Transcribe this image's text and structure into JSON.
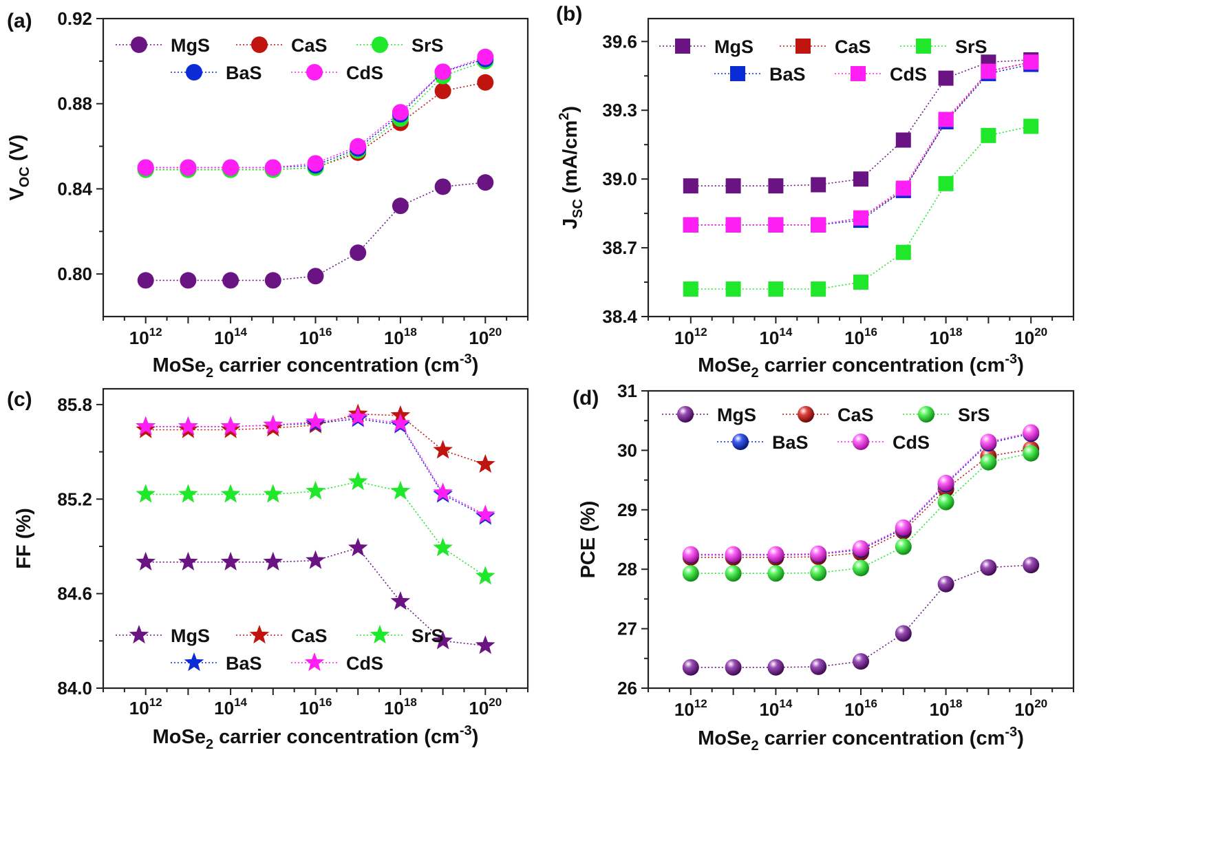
{
  "figure": {
    "xlabel_main": "MoSe",
    "xlabel_sub": "2",
    "xlabel_tail": " carrier concentration (cm",
    "xlabel_sup": "-3",
    "xlabel_end": ")",
    "x_tick_base": "10",
    "series_colors": {
      "MgS": "#6a1483",
      "CaS": "#c0140f",
      "SrS": "#1fe82a",
      "BaS": "#0b2bd6",
      "CdS": "#ff1ff4"
    },
    "legend_rows": [
      [
        "MgS",
        "CaS",
        "SrS"
      ],
      [
        "BaS",
        "CdS"
      ]
    ]
  },
  "chart_data": [
    {
      "panel_label": "(a)",
      "type": "line",
      "marker": "circle",
      "ylabel_main": "V",
      "ylabel_sub": "OC",
      "ylabel_tail": " (V)",
      "ylim": [
        0.78,
        0.92
      ],
      "yticks": [
        "0.80",
        "0.84",
        "0.88",
        "0.92"
      ],
      "yticks_values": [
        0.8,
        0.84,
        0.88,
        0.92
      ],
      "x_exponents": [
        12,
        13,
        14,
        15,
        16,
        17,
        18,
        19,
        20
      ],
      "x_labeled_exponents": [
        "12",
        "14",
        "16",
        "18",
        "20"
      ],
      "legend_position": "top",
      "series": [
        {
          "name": "MgS",
          "values": [
            0.797,
            0.797,
            0.797,
            0.797,
            0.799,
            0.81,
            0.832,
            0.841,
            0.843
          ]
        },
        {
          "name": "CaS",
          "values": [
            0.849,
            0.849,
            0.849,
            0.849,
            0.85,
            0.857,
            0.871,
            0.886,
            0.89
          ]
        },
        {
          "name": "SrS",
          "values": [
            0.849,
            0.849,
            0.849,
            0.849,
            0.85,
            0.858,
            0.873,
            0.893,
            0.9
          ]
        },
        {
          "name": "BaS",
          "values": [
            0.85,
            0.85,
            0.85,
            0.85,
            0.851,
            0.859,
            0.875,
            0.895,
            0.901
          ]
        },
        {
          "name": "CdS",
          "values": [
            0.85,
            0.85,
            0.85,
            0.85,
            0.852,
            0.86,
            0.876,
            0.895,
            0.902
          ]
        }
      ]
    },
    {
      "panel_label": "(b)",
      "type": "line",
      "marker": "square",
      "ylabel_main": "J",
      "ylabel_sub": "SC",
      "ylabel_tail": " (mA/cm",
      "ylabel_sup": "2",
      "ylabel_end": ")",
      "ylim": [
        38.4,
        39.7
      ],
      "yticks": [
        "38.4",
        "38.7",
        "39.0",
        "39.3",
        "39.6"
      ],
      "yticks_values": [
        38.4,
        38.7,
        39.0,
        39.3,
        39.6
      ],
      "x_exponents": [
        12,
        13,
        14,
        15,
        16,
        17,
        18,
        19,
        20
      ],
      "x_labeled_exponents": [
        "12",
        "14",
        "16",
        "18",
        "20"
      ],
      "legend_position": "top",
      "series": [
        {
          "name": "MgS",
          "values": [
            38.97,
            38.97,
            38.97,
            38.975,
            39.0,
            39.17,
            39.44,
            39.51,
            39.52
          ]
        },
        {
          "name": "CaS",
          "values": [
            38.8,
            38.8,
            38.8,
            38.8,
            38.83,
            38.95,
            39.25,
            39.47,
            39.51
          ]
        },
        {
          "name": "SrS",
          "values": [
            38.52,
            38.52,
            38.52,
            38.52,
            38.55,
            38.68,
            38.98,
            39.19,
            39.23
          ]
        },
        {
          "name": "BaS",
          "values": [
            38.8,
            38.8,
            38.8,
            38.8,
            38.82,
            38.95,
            39.25,
            39.46,
            39.5
          ]
        },
        {
          "name": "CdS",
          "values": [
            38.8,
            38.8,
            38.8,
            38.8,
            38.83,
            38.96,
            39.26,
            39.47,
            39.51
          ]
        }
      ]
    },
    {
      "panel_label": "(c)",
      "type": "line",
      "marker": "star",
      "ylabel_main": "FF (%)",
      "ylim": [
        84.0,
        85.9
      ],
      "yticks": [
        "84.0",
        "84.6",
        "85.2",
        "85.8"
      ],
      "yticks_values": [
        84.0,
        84.6,
        85.2,
        85.8
      ],
      "x_exponents": [
        12,
        13,
        14,
        15,
        16,
        17,
        18,
        19,
        20
      ],
      "x_labeled_exponents": [
        "12",
        "14",
        "16",
        "18",
        "20"
      ],
      "legend_position": "bottom",
      "series": [
        {
          "name": "MgS",
          "values": [
            84.8,
            84.8,
            84.8,
            84.8,
            84.81,
            84.89,
            84.55,
            84.3,
            84.27
          ]
        },
        {
          "name": "CaS",
          "values": [
            85.64,
            85.64,
            85.64,
            85.65,
            85.67,
            85.74,
            85.73,
            85.51,
            85.42
          ]
        },
        {
          "name": "SrS",
          "values": [
            85.23,
            85.23,
            85.23,
            85.23,
            85.25,
            85.31,
            85.25,
            84.89,
            84.71
          ]
        },
        {
          "name": "BaS",
          "values": [
            85.66,
            85.66,
            85.66,
            85.67,
            85.68,
            85.71,
            85.67,
            85.23,
            85.09
          ]
        },
        {
          "name": "CdS",
          "values": [
            85.66,
            85.66,
            85.66,
            85.67,
            85.69,
            85.72,
            85.68,
            85.24,
            85.1
          ]
        }
      ]
    },
    {
      "panel_label": "(d)",
      "type": "line",
      "marker": "sphere",
      "ylabel_main": "PCE (%)",
      "ylim": [
        26,
        31
      ],
      "yticks": [
        "26",
        "27",
        "28",
        "29",
        "30",
        "31"
      ],
      "yticks_values": [
        26,
        27,
        28,
        29,
        30,
        31
      ],
      "x_exponents": [
        12,
        13,
        14,
        15,
        16,
        17,
        18,
        19,
        20
      ],
      "x_labeled_exponents": [
        "12",
        "14",
        "16",
        "18",
        "20"
      ],
      "legend_position": "top",
      "series": [
        {
          "name": "MgS",
          "values": [
            26.35,
            26.35,
            26.35,
            26.36,
            26.45,
            26.92,
            27.75,
            28.03,
            28.07
          ]
        },
        {
          "name": "CaS",
          "values": [
            28.2,
            28.2,
            28.2,
            28.21,
            28.28,
            28.64,
            29.35,
            29.9,
            30.02
          ]
        },
        {
          "name": "SrS",
          "values": [
            27.93,
            27.93,
            27.93,
            27.94,
            28.02,
            28.38,
            29.13,
            29.8,
            29.95
          ]
        },
        {
          "name": "BaS",
          "values": [
            28.24,
            28.24,
            28.24,
            28.25,
            28.33,
            28.68,
            29.43,
            30.12,
            30.28
          ]
        },
        {
          "name": "CdS",
          "values": [
            28.25,
            28.25,
            28.25,
            28.26,
            28.35,
            28.7,
            29.45,
            30.14,
            30.3
          ]
        }
      ]
    }
  ]
}
